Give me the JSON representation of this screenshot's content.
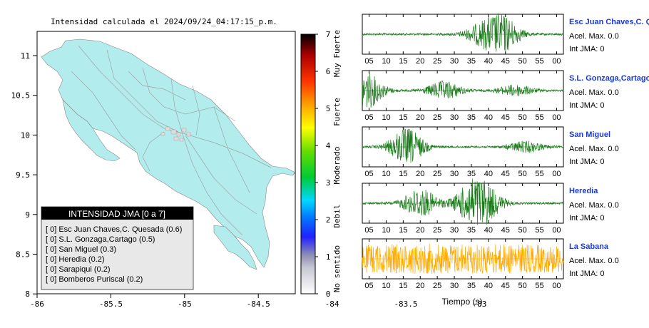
{
  "map": {
    "title": "Intensidad calculada el 2024/09/24_04:17:15_p.m.",
    "x_ticks": [
      "-86",
      "-85.5",
      "-85",
      "-84.5",
      "-84",
      "-83.5",
      "-83"
    ],
    "y_ticks": [
      "11",
      "10.5",
      "10",
      "9.5",
      "9",
      "8.5",
      "8"
    ],
    "land_color": "#b3ecec",
    "legend": {
      "title": "INTENSIDAD JMA [0 a 7]",
      "items": [
        "[ 0]  Esc Juan Chaves,C. Quesada (0.6)",
        "[ 0]  S.L. Gonzaga,Cartago (0.5)",
        "[ 0]  San Miguel (0.3)",
        "[ 0]  Heredia (0.2)",
        "[ 0]  Sarapiqui (0.2)",
        "[ 0]  Bomberos Puriscal (0.2)"
      ]
    }
  },
  "colorbar": {
    "ticks": [
      "7",
      "6",
      "5",
      "4",
      "3",
      "2",
      "1",
      "0"
    ],
    "labels": [
      "Muy Fuerte",
      "Fuerte",
      "Moderado",
      "Debil",
      "No sentido"
    ]
  },
  "waveforms": {
    "x_ticks": [
      "05",
      "10",
      "15",
      "20",
      "25",
      "30",
      "35",
      "40",
      "45",
      "50",
      "55",
      "00"
    ],
    "xlabel": "Tiempo (s)",
    "stations": [
      {
        "name": "Esc Juan Chaves,C. Qu",
        "accel": "Acel. Max. 0.0",
        "jma": "Int JMA: 0",
        "color": "#1a7a1a"
      },
      {
        "name": "S.L. Gonzaga,Cartago",
        "accel": "Acel. Max. 0.0",
        "jma": "Int JMA: 0",
        "color": "#1a7a1a"
      },
      {
        "name": "San Miguel",
        "accel": "Acel. Max. 0.0",
        "jma": "Int JMA: 0",
        "color": "#1a7a1a"
      },
      {
        "name": "Heredia",
        "accel": "Acel. Max. 0.0",
        "jma": "Int JMA: 0",
        "color": "#1a7a1a"
      },
      {
        "name": "La Sabana",
        "accel": "Acel. Max. 0.0",
        "jma": "Int JMA: 0",
        "color": "#ffaa00"
      }
    ]
  },
  "chart_data": [
    {
      "type": "map",
      "title": "Intensidad calculada el 2024/09/24_04:17:15_p.m.",
      "xlim": [
        -86,
        -82.6
      ],
      "ylim": [
        8,
        11.25
      ],
      "station_intensities": [
        {
          "name": "Esc Juan Chaves,C. Quesada",
          "jma": 0,
          "value": 0.6
        },
        {
          "name": "S.L. Gonzaga,Cartago",
          "jma": 0,
          "value": 0.5
        },
        {
          "name": "San Miguel",
          "jma": 0,
          "value": 0.3
        },
        {
          "name": "Heredia",
          "jma": 0,
          "value": 0.2
        },
        {
          "name": "Sarapiqui",
          "jma": 0,
          "value": 0.2
        },
        {
          "name": "Bomberos Puriscal",
          "jma": 0,
          "value": 0.2
        }
      ]
    },
    {
      "type": "heatmap",
      "scale": [
        0,
        7
      ],
      "stops": [
        "#ffffff",
        "#9a9ab0",
        "#0000ff",
        "#00d8ff",
        "#00cc00",
        "#ffff00",
        "#ff9900",
        "#ff0000",
        "#000000"
      ]
    },
    {
      "type": "line",
      "x_range_seconds": [
        3,
        62
      ],
      "series": [
        {
          "name": "Esc Juan Chaves,C. Qu",
          "bursts": [
            {
              "t": 44,
              "amp": 1.0
            },
            {
              "t": 38,
              "amp": 0.5
            }
          ]
        },
        {
          "name": "S.L. Gonzaga,Cartago",
          "bursts": [
            {
              "t": 4,
              "amp": 1.0
            },
            {
              "t": 27,
              "amp": 0.5
            },
            {
              "t": 48,
              "amp": 0.3
            }
          ]
        },
        {
          "name": "San Miguel",
          "bursts": [
            {
              "t": 16,
              "amp": 1.0
            },
            {
              "t": 51,
              "amp": 0.3
            }
          ]
        },
        {
          "name": "Heredia",
          "bursts": [
            {
              "t": 20,
              "amp": 0.8
            },
            {
              "t": 35,
              "amp": 0.9
            },
            {
              "t": 39,
              "amp": 0.8
            }
          ]
        },
        {
          "name": "La Sabana",
          "bursts": [
            {
              "t": 30,
              "amp": 1.0
            }
          ]
        }
      ]
    }
  ]
}
